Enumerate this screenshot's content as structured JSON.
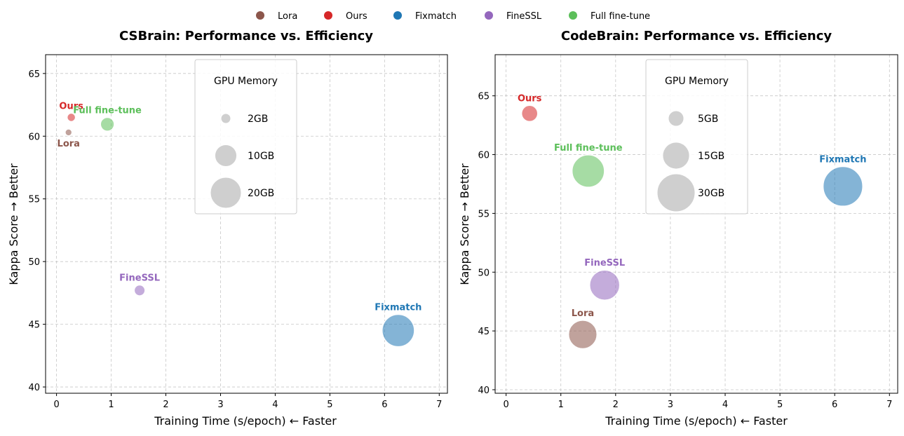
{
  "legend": {
    "items": [
      {
        "name": "Lora",
        "color": "#8c564b"
      },
      {
        "name": "Ours",
        "color": "#d62728"
      },
      {
        "name": "Fixmatch",
        "color": "#1f77b4"
      },
      {
        "name": "FineSSL",
        "color": "#9467bd"
      },
      {
        "name": "Full fine-tune",
        "color": "#5cbf5a"
      }
    ]
  },
  "chart_data": [
    {
      "type": "scatter",
      "title": "CSBrain: Performance vs. Efficiency",
      "xlabel": "Training Time (s/epoch) ← Faster",
      "ylabel": "Kappa Score → Better",
      "xlim": [
        -0.2,
        7.15
      ],
      "ylim": [
        39.5,
        66.5
      ],
      "xticks": [
        0,
        1,
        2,
        3,
        4,
        5,
        6,
        7
      ],
      "yticks": [
        40,
        45,
        50,
        55,
        60,
        65
      ],
      "grid": true,
      "size_legend": {
        "title": "GPU Memory",
        "entries": [
          {
            "label": "2GB",
            "gb": 2
          },
          {
            "label": "10GB",
            "gb": 10
          },
          {
            "label": "20GB",
            "gb": 20
          }
        ]
      },
      "points": [
        {
          "name": "Lora",
          "x": 0.22,
          "y": 60.3,
          "memory_gb": 1,
          "color": "#8c564b",
          "label_pos": "below"
        },
        {
          "name": "Ours",
          "x": 0.27,
          "y": 61.5,
          "memory_gb": 1.5,
          "color": "#d62728",
          "label_pos": "above"
        },
        {
          "name": "Full fine-tune",
          "x": 0.93,
          "y": 60.95,
          "memory_gb": 4,
          "color": "#5cbf5a",
          "label_pos": "above"
        },
        {
          "name": "FineSSL",
          "x": 1.52,
          "y": 47.7,
          "memory_gb": 2.5,
          "color": "#9467bd",
          "label_pos": "above"
        },
        {
          "name": "Fixmatch",
          "x": 6.25,
          "y": 44.5,
          "memory_gb": 22,
          "color": "#1f77b4",
          "label_pos": "above"
        }
      ]
    },
    {
      "type": "scatter",
      "title": "CodeBrain: Performance vs. Efficiency",
      "xlabel": "Training Time (s/epoch) ← Faster",
      "ylabel": "Kappa Score → Better",
      "xlim": [
        -0.2,
        7.15
      ],
      "ylim": [
        39.7,
        68.5
      ],
      "xticks": [
        0,
        1,
        2,
        3,
        4,
        5,
        6,
        7
      ],
      "yticks": [
        40,
        45,
        50,
        55,
        60,
        65
      ],
      "grid": true,
      "size_legend": {
        "title": "GPU Memory",
        "entries": [
          {
            "label": "5GB",
            "gb": 5
          },
          {
            "label": "15GB",
            "gb": 15
          },
          {
            "label": "30GB",
            "gb": 30
          }
        ]
      },
      "points": [
        {
          "name": "Ours",
          "x": 0.43,
          "y": 63.5,
          "memory_gb": 5.5,
          "color": "#d62728",
          "label_pos": "above"
        },
        {
          "name": "Full fine-tune",
          "x": 1.5,
          "y": 58.6,
          "memory_gb": 22,
          "color": "#5cbf5a",
          "label_pos": "above"
        },
        {
          "name": "Fixmatch",
          "x": 6.15,
          "y": 57.3,
          "memory_gb": 33,
          "color": "#1f77b4",
          "label_pos": "above"
        },
        {
          "name": "FineSSL",
          "x": 1.8,
          "y": 48.9,
          "memory_gb": 19,
          "color": "#9467bd",
          "label_pos": "above"
        },
        {
          "name": "Lora",
          "x": 1.4,
          "y": 44.7,
          "memory_gb": 17,
          "color": "#8c564b",
          "label_pos": "above"
        }
      ]
    }
  ]
}
